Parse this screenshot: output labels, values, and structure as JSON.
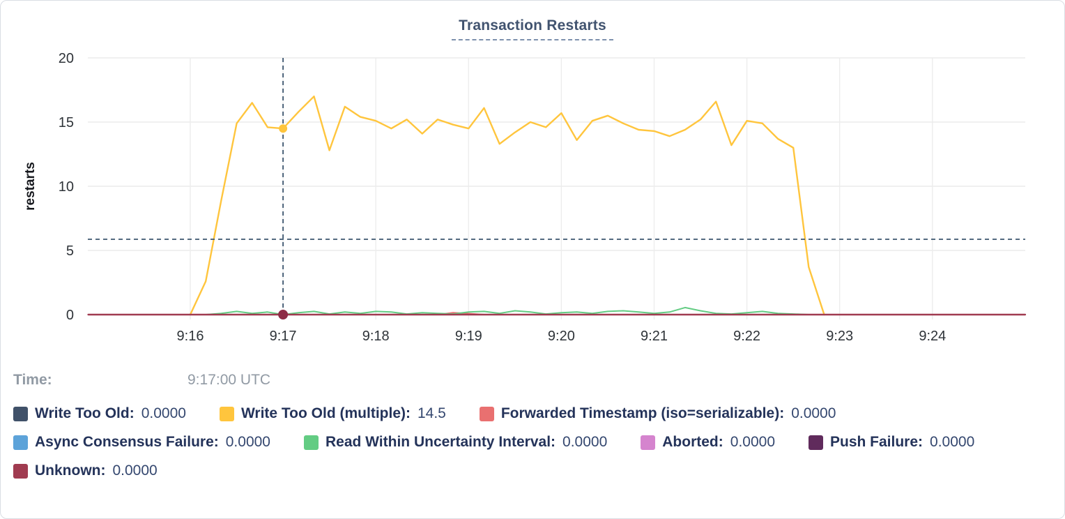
{
  "chart_data": {
    "type": "line",
    "title": "Transaction Restarts",
    "ylabel": "restarts",
    "ylim": [
      0,
      20
    ],
    "yticks": [
      0,
      5,
      10,
      15,
      20
    ],
    "xticks": [
      "9:16",
      "9:17",
      "9:18",
      "9:19",
      "9:20",
      "9:21",
      "9:22",
      "9:23",
      "9:24"
    ],
    "x_unit": "seconds after 9:16:00 UTC, 10s sample interval",
    "grid": true,
    "legend_position": "bottom",
    "series": [
      {
        "name": "Write Too Old",
        "color": "#405169",
        "points": [
          [
            -66,
            0
          ],
          [
            540,
            0
          ]
        ]
      },
      {
        "name": "Write Too Old (multiple)",
        "color": "#FFC53D",
        "t_start": 0,
        "t_step": 10,
        "values": [
          0,
          2.6,
          8.9,
          14.9,
          16.5,
          14.6,
          14.5,
          15.8,
          17,
          12.8,
          16.2,
          15.4,
          15.1,
          14.5,
          15.2,
          14.1,
          15.2,
          14.8,
          14.5,
          16.1,
          13.3,
          14.2,
          15,
          14.6,
          15.7,
          13.6,
          15.1,
          15.5,
          14.9,
          14.4,
          14.3,
          13.9,
          14.4,
          15.2,
          16.6,
          13.2,
          15.1,
          14.9,
          13.7,
          13,
          3.7,
          0
        ]
      },
      {
        "name": "Forwarded Timestamp (iso=serializable)",
        "color": "#E97070",
        "points": [
          [
            -66,
            0
          ],
          [
            160,
            0
          ],
          [
            170,
            0.15
          ],
          [
            180,
            0.08
          ],
          [
            190,
            0
          ],
          [
            540,
            0
          ]
        ]
      },
      {
        "name": "Async Consensus Failure",
        "color": "#5DA3D9",
        "points": [
          [
            -66,
            0
          ],
          [
            540,
            0
          ]
        ]
      },
      {
        "name": "Read Within Uncertainty Interval",
        "color": "#63CC83",
        "t_start": 0,
        "t_step": 10,
        "values": [
          0,
          0,
          0.1,
          0.25,
          0.1,
          0.2,
          0,
          0.15,
          0.25,
          0.05,
          0.2,
          0.1,
          0.25,
          0.2,
          0.05,
          0.15,
          0.1,
          0.05,
          0.2,
          0.25,
          0.1,
          0.3,
          0.2,
          0.05,
          0.15,
          0.2,
          0.1,
          0.25,
          0.3,
          0.2,
          0.1,
          0.2,
          0.55,
          0.3,
          0.1,
          0.05,
          0.15,
          0.25,
          0.1,
          0.05,
          0,
          0
        ]
      },
      {
        "name": "Aborted",
        "color": "#D584CE",
        "points": [
          [
            -66,
            0
          ],
          [
            540,
            0
          ]
        ]
      },
      {
        "name": "Push Failure",
        "color": "#602B5C",
        "points": [
          [
            -66,
            0
          ],
          [
            540,
            0
          ]
        ]
      },
      {
        "name": "Unknown",
        "color": "#A03B50",
        "points": [
          [
            -66,
            0
          ],
          [
            540,
            0
          ]
        ]
      }
    ],
    "hover": {
      "time_label": "Time:",
      "time_value": "9:17:00 UTC",
      "t_seconds": 60,
      "tick_label": "9:17",
      "crosshair_y_value": 5.87,
      "dots": [
        {
          "series": "Write Too Old (multiple)",
          "value": 14.5,
          "color": "#FFC53D",
          "radius": 6
        },
        {
          "series": "Unknown",
          "value": 0,
          "color": "#8E2C46",
          "radius": 7
        }
      ]
    }
  },
  "legend": {
    "rows": [
      {
        "items": [
          {
            "label": "Write Too Old:",
            "value": "0.0000",
            "color": "#405169"
          },
          {
            "label": "Write Too Old (multiple):",
            "value": "14.5",
            "color": "#FFC53D"
          },
          {
            "label": "Forwarded Timestamp (iso=serializable):",
            "value": "0.0000",
            "color": "#E97070"
          }
        ]
      },
      {
        "items": [
          {
            "label": "Async Consensus Failure:",
            "value": "0.0000",
            "color": "#5DA3D9"
          },
          {
            "label": "Read Within Uncertainty Interval:",
            "value": "0.0000",
            "color": "#63CC83"
          },
          {
            "label": "Aborted:",
            "value": "0.0000",
            "color": "#D584CE"
          },
          {
            "label": "Push Failure:",
            "value": "0.0000",
            "color": "#602B5C"
          }
        ]
      },
      {
        "items": [
          {
            "label": "Unknown:",
            "value": "0.0000",
            "color": "#A03B50"
          }
        ]
      }
    ]
  }
}
